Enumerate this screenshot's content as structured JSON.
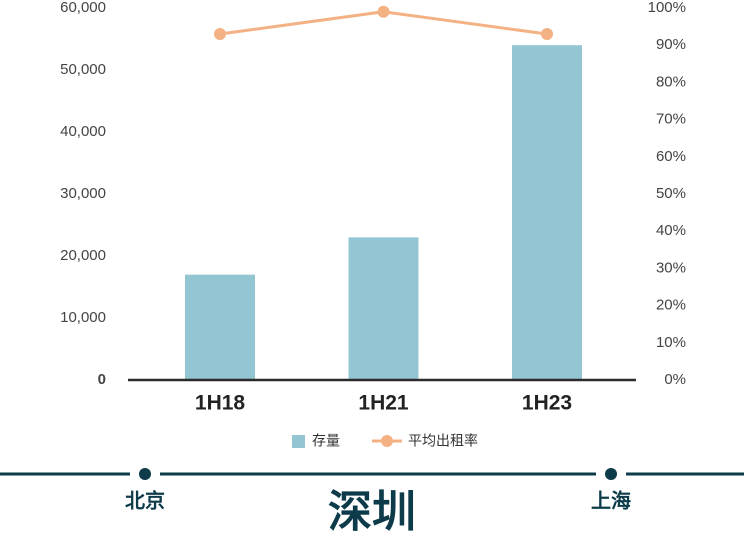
{
  "chart_data": {
    "type": "bar",
    "categories": [
      "1H18",
      "1H21",
      "1H23"
    ],
    "series": [
      {
        "name": "存量",
        "color": "#94c5d3",
        "type": "bar",
        "values": [
          17000,
          23000,
          54000
        ]
      },
      {
        "name": "平均出租率",
        "color": "#f4b183",
        "type": "line",
        "axis": "y2",
        "values": [
          93,
          99,
          93
        ]
      }
    ],
    "ylim": [
      0,
      60000
    ],
    "yticks": [
      0,
      {
        "value": 10000,
        "label": "10,000"
      },
      {
        "value": 20000,
        "label": "20,000"
      },
      {
        "value": 30000,
        "label": "30,000"
      },
      {
        "value": 40000,
        "label": "40,000"
      },
      {
        "value": 50000,
        "label": "50,000"
      },
      {
        "value": 60000,
        "label": "60,000"
      }
    ],
    "y2lim": [
      0,
      100
    ],
    "y2ticks": [
      {
        "value": 0,
        "label": "0%"
      },
      {
        "value": 10,
        "label": "10%"
      },
      {
        "value": 20,
        "label": "20%"
      },
      {
        "value": 30,
        "label": "30%"
      },
      {
        "value": 40,
        "label": "40%"
      },
      {
        "value": 50,
        "label": "50%"
      },
      {
        "value": 60,
        "label": "60%"
      },
      {
        "value": 70,
        "label": "70%"
      },
      {
        "value": 80,
        "label": "80%"
      },
      {
        "value": 90,
        "label": "90%"
      },
      {
        "value": 100,
        "label": "100%"
      }
    ],
    "grid": false,
    "legend": "bottom"
  },
  "cities": {
    "left": "北京",
    "center": "深圳",
    "right": "上海"
  }
}
